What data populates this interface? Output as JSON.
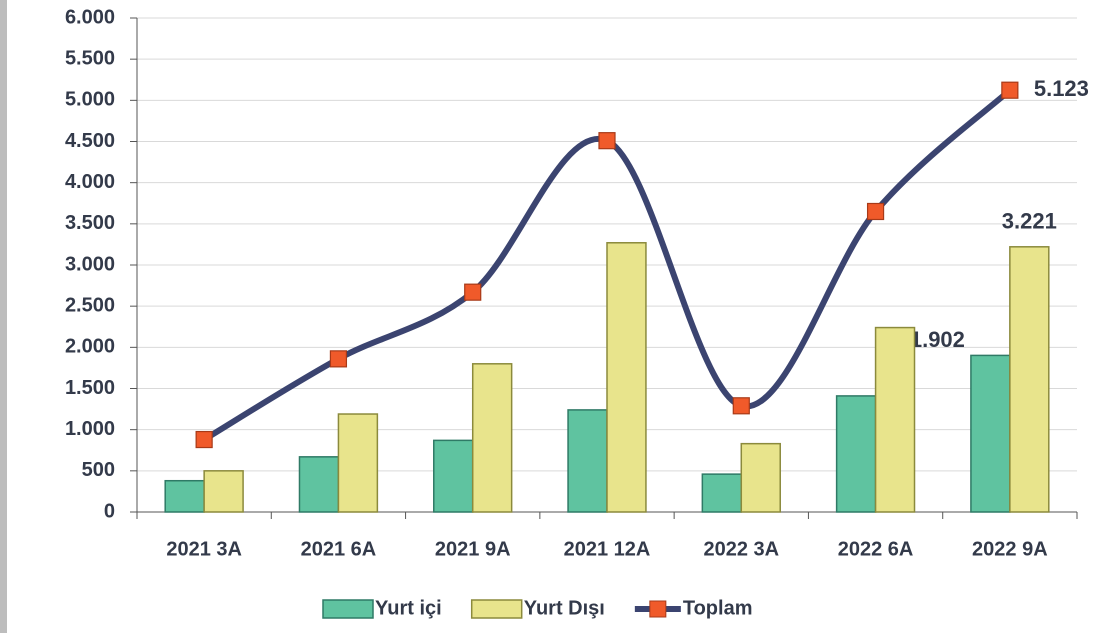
{
  "chart_data": {
    "type": "bar",
    "categories": [
      "2021 3A",
      "2021 6A",
      "2021 9A",
      "2021 12A",
      "2022 3A",
      "2022 6A",
      "2022 9A"
    ],
    "series": [
      {
        "name": "Yurt içi",
        "color": "#5fc3a0",
        "values": [
          380,
          670,
          870,
          1240,
          460,
          1410,
          1902
        ],
        "value_labels": [
          null,
          null,
          null,
          null,
          null,
          null,
          "1.902"
        ]
      },
      {
        "name": "Yurt Dışı",
        "color": "#e8e48c",
        "values": [
          500,
          1190,
          1800,
          3270,
          830,
          2240,
          3221
        ],
        "value_labels": [
          null,
          null,
          null,
          null,
          null,
          null,
          "3.221"
        ]
      },
      {
        "name": "Toplam",
        "type": "line",
        "color": "#3b4470",
        "marker_color": "#f05a2a",
        "values": [
          880,
          1860,
          2670,
          4510,
          1290,
          3650,
          5123
        ],
        "value_labels": [
          null,
          null,
          null,
          null,
          null,
          null,
          "5.123"
        ]
      }
    ],
    "ylim": [
      0,
      6000
    ],
    "yticks": [
      0,
      500,
      {
        "value": 1000,
        "label": "1.000"
      },
      {
        "value": 1500,
        "label": "1.500"
      },
      {
        "value": 2000,
        "label": "2.000"
      },
      {
        "value": 2500,
        "label": "2.500"
      },
      {
        "value": 3000,
        "label": "3.000"
      },
      {
        "value": 3500,
        "label": "3.500"
      },
      {
        "value": 4000,
        "label": "4.000"
      },
      {
        "value": 4500,
        "label": "4.500"
      },
      {
        "value": 5000,
        "label": "5.000"
      },
      {
        "value": 5500,
        "label": "5.500"
      },
      {
        "value": 6000,
        "label": "6.000"
      }
    ],
    "grid": true,
    "legend": "bottom"
  }
}
